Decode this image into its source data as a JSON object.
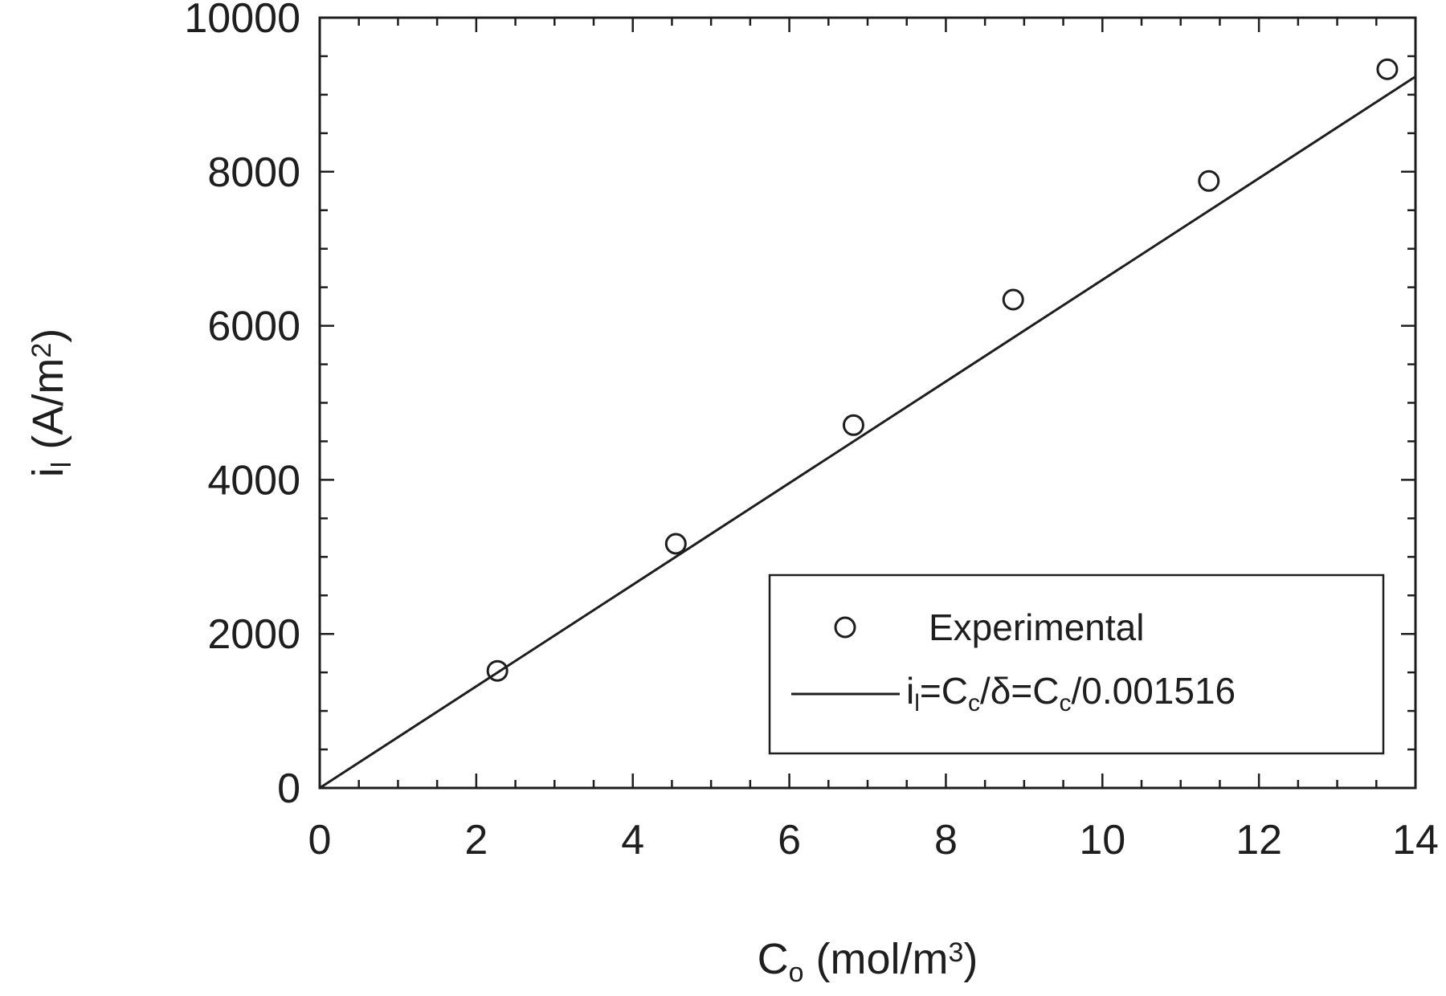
{
  "chart_data": {
    "type": "scatter",
    "xlabel": "C",
    "xlabel_sub": "o",
    "xlabel_unit_prefix": " (mol/m",
    "xlabel_unit_sup": "3",
    "xlabel_unit_suffix": ")",
    "ylabel": "i",
    "ylabel_sub": "l",
    "ylabel_unit_prefix": " (A/m",
    "ylabel_unit_sup": "2",
    "ylabel_unit_suffix": ")",
    "xlim": [
      0,
      14
    ],
    "ylim": [
      0,
      10000
    ],
    "xticks": [
      0,
      2,
      4,
      6,
      8,
      10,
      12,
      14
    ],
    "yticks": [
      0,
      2000,
      4000,
      6000,
      8000,
      10000
    ],
    "grid": false,
    "legend_position": "bottom-right",
    "series": [
      {
        "name": "Experimental",
        "type": "scatter",
        "marker": "open-circle",
        "color": "#1e1e1e",
        "x": [
          2.27,
          4.55,
          6.82,
          8.86,
          11.36,
          13.64
        ],
        "y": [
          1520,
          3170,
          4710,
          6340,
          7880,
          9330
        ]
      },
      {
        "name": "i",
        "name_parts": [
          {
            "t": "i"
          },
          {
            "t": "l",
            "sub": true
          },
          {
            "t": "=C"
          },
          {
            "t": "c",
            "sub": true
          },
          {
            "t": "/δ=C"
          },
          {
            "t": "c",
            "sub": true
          },
          {
            "t": "/0.001516"
          }
        ],
        "type": "line",
        "color": "#1e1e1e",
        "slope": 659.63,
        "x": [
          0,
          14
        ],
        "y": [
          0,
          9234.8
        ]
      }
    ]
  }
}
